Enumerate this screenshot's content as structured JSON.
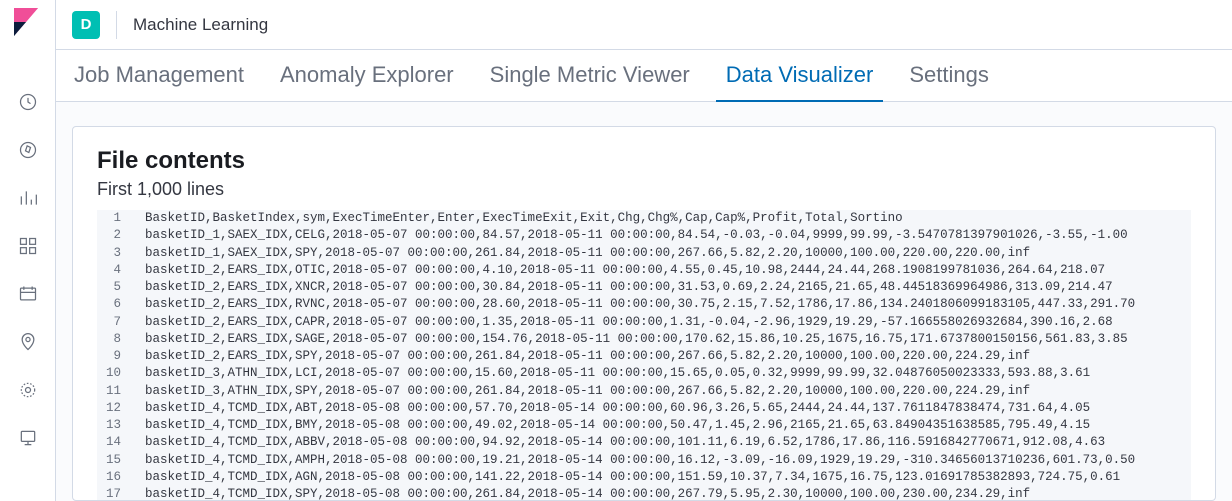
{
  "topbar": {
    "space_letter": "D",
    "app_title": "Machine Learning"
  },
  "tabs": [
    {
      "label": "Job Management",
      "active": false
    },
    {
      "label": "Anomaly Explorer",
      "active": false
    },
    {
      "label": "Single Metric Viewer",
      "active": false
    },
    {
      "label": "Data Visualizer",
      "active": true
    },
    {
      "label": "Settings",
      "active": false
    }
  ],
  "panel": {
    "title": "File contents",
    "subtitle": "First 1,000 lines"
  },
  "file_lines": [
    "BasketID,BasketIndex,sym,ExecTimeEnter,Enter,ExecTimeExit,Exit,Chg,Chg%,Cap,Cap%,Profit,Total,Sortino",
    "basketID_1,SAEX_IDX,CELG,2018-05-07 00:00:00,84.57,2018-05-11 00:00:00,84.54,-0.03,-0.04,9999,99.99,-3.5470781397901026,-3.55,-1.00",
    "basketID_1,SAEX_IDX,SPY,2018-05-07 00:00:00,261.84,2018-05-11 00:00:00,267.66,5.82,2.20,10000,100.00,220.00,220.00,inf",
    "basketID_2,EARS_IDX,OTIC,2018-05-07 00:00:00,4.10,2018-05-11 00:00:00,4.55,0.45,10.98,2444,24.44,268.1908199781036,264.64,218.07",
    "basketID_2,EARS_IDX,XNCR,2018-05-07 00:00:00,30.84,2018-05-11 00:00:00,31.53,0.69,2.24,2165,21.65,48.44518369964986,313.09,214.47",
    "basketID_2,EARS_IDX,RVNC,2018-05-07 00:00:00,28.60,2018-05-11 00:00:00,30.75,2.15,7.52,1786,17.86,134.2401806099183105,447.33,291.70",
    "basketID_2,EARS_IDX,CAPR,2018-05-07 00:00:00,1.35,2018-05-11 00:00:00,1.31,-0.04,-2.96,1929,19.29,-57.166558026932684,390.16,2.68",
    "basketID_2,EARS_IDX,SAGE,2018-05-07 00:00:00,154.76,2018-05-11 00:00:00,170.62,15.86,10.25,1675,16.75,171.6737800150156,561.83,3.85",
    "basketID_2,EARS_IDX,SPY,2018-05-07 00:00:00,261.84,2018-05-11 00:00:00,267.66,5.82,2.20,10000,100.00,220.00,224.29,inf",
    "basketID_3,ATHN_IDX,LCI,2018-05-07 00:00:00,15.60,2018-05-11 00:00:00,15.65,0.05,0.32,9999,99.99,32.04876050023333,593.88,3.61",
    "basketID_3,ATHN_IDX,SPY,2018-05-07 00:00:00,261.84,2018-05-11 00:00:00,267.66,5.82,2.20,10000,100.00,220.00,224.29,inf",
    "basketID_4,TCMD_IDX,ABT,2018-05-08 00:00:00,57.70,2018-05-14 00:00:00,60.96,3.26,5.65,2444,24.44,137.7611847838474,731.64,4.05",
    "basketID_4,TCMD_IDX,BMY,2018-05-08 00:00:00,49.02,2018-05-14 00:00:00,50.47,1.45,2.96,2165,21.65,63.84904351638585,795.49,4.15",
    "basketID_4,TCMD_IDX,ABBV,2018-05-08 00:00:00,94.92,2018-05-14 00:00:00,101.11,6.19,6.52,1786,17.86,116.5916842770671,912.08,4.63",
    "basketID_4,TCMD_IDX,AMPH,2018-05-08 00:00:00,19.21,2018-05-14 00:00:00,16.12,-3.09,-16.09,1929,19.29,-310.34656013710236,601.73,0.50",
    "basketID_4,TCMD_IDX,AGN,2018-05-08 00:00:00,141.22,2018-05-14 00:00:00,151.59,10.37,7.34,1675,16.75,123.01691785382893,724.75,0.61",
    "basketID_4,TCMD_IDX,SPY,2018-05-08 00:00:00,261.84,2018-05-14 00:00:00,267.79,5.95,2.30,10000,100.00,230.00,234.29,inf"
  ],
  "colors": {
    "accent": "#006bb4",
    "border": "#d3dae6",
    "text": "#343741",
    "muted": "#69707d",
    "space_bg": "#00bfb3"
  }
}
